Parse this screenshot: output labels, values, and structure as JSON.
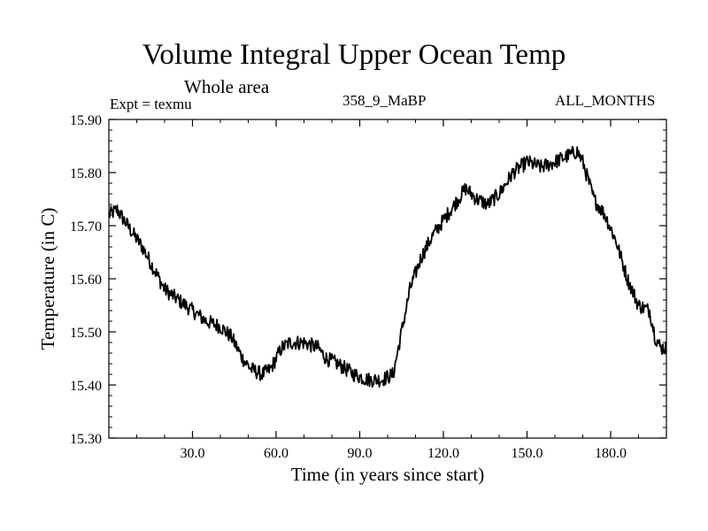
{
  "chart_data": {
    "type": "line",
    "title": "Volume Integral Upper Ocean Temp",
    "subtitle": "Whole area",
    "annotations": {
      "experiment": "Expt = texmu",
      "run": "358_9_MaBP",
      "months": "ALL_MONTHS"
    },
    "xlabel": "Time (in years since start)",
    "ylabel": "Temperature (in C)",
    "xlim": [
      0,
      200
    ],
    "ylim": [
      15.3,
      15.9
    ],
    "xticks": [
      30,
      60,
      90,
      120,
      150,
      180
    ],
    "xtick_labels": [
      "30.0",
      "60.0",
      "90.0",
      "120.0",
      "150.0",
      "180.0"
    ],
    "yticks": [
      15.3,
      15.4,
      15.5,
      15.6,
      15.7,
      15.8,
      15.9
    ],
    "ytick_labels": [
      "15.30",
      "15.40",
      "15.50",
      "15.60",
      "15.70",
      "15.80",
      "15.90"
    ],
    "grid": false,
    "series": [
      {
        "name": "Temperature",
        "x": [
          0,
          3,
          8,
          12,
          16,
          20,
          25,
          30,
          35,
          40,
          44,
          48,
          51,
          55,
          58,
          62,
          65,
          70,
          75,
          78,
          82,
          88,
          93,
          98,
          102,
          105,
          108,
          112,
          116,
          120,
          124,
          128,
          132,
          136,
          140,
          145,
          150,
          155,
          160,
          164,
          168,
          170,
          174,
          178,
          182,
          186,
          190,
          194,
          196,
          198,
          200
        ],
        "y": [
          15.72,
          15.73,
          15.69,
          15.66,
          15.62,
          15.58,
          15.56,
          15.54,
          15.52,
          15.51,
          15.49,
          15.45,
          15.43,
          15.42,
          15.43,
          15.47,
          15.48,
          15.48,
          15.47,
          15.45,
          15.44,
          15.42,
          15.41,
          15.41,
          15.42,
          15.5,
          15.58,
          15.64,
          15.68,
          15.71,
          15.74,
          15.77,
          15.75,
          15.74,
          15.76,
          15.8,
          15.82,
          15.81,
          15.82,
          15.83,
          15.84,
          15.82,
          15.75,
          15.72,
          15.67,
          15.6,
          15.55,
          15.54,
          15.49,
          15.47,
          15.47
        ]
      }
    ]
  }
}
